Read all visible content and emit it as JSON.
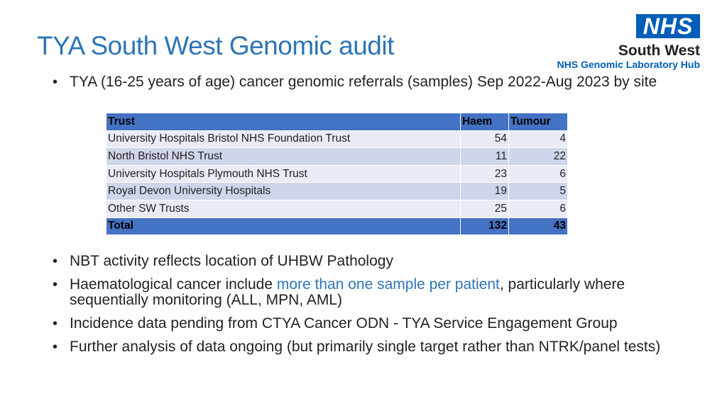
{
  "slide": {
    "title": "TYA South West Genomic audit",
    "intro_bullets": [
      "TYA (16-25 years of age) cancer genomic referrals (samples) Sep 2022-Aug 2023 by site"
    ],
    "notes": [
      {
        "text": "NBT activity reflects location of UHBW Pathology"
      },
      {
        "pre": "Haematological cancer include ",
        "highlight": "more than one sample per patient",
        "post": ", particularly where sequentially monitoring (ALL, MPN, AML)"
      },
      {
        "text": "Incidence data pending from CTYA Cancer ODN - TYA Service Engagement Group"
      },
      {
        "text": "Further analysis of data ongoing (but primarily single target rather than NTRK/panel tests)"
      }
    ]
  },
  "logo": {
    "badge": "NHS",
    "region": "South West",
    "hub": "NHS Genomic Laboratory Hub",
    "brand_color": "#005eb8"
  },
  "table": {
    "headers": [
      "Trust",
      "Haem",
      "Tumour"
    ],
    "rows": [
      [
        "University Hospitals Bristol NHS Foundation Trust",
        "54",
        "4"
      ],
      [
        "North Bristol NHS Trust",
        "11",
        "22"
      ],
      [
        "University Hospitals Plymouth NHS Trust",
        "23",
        "6"
      ],
      [
        "Royal Devon University Hospitals",
        "19",
        "5"
      ],
      [
        "Other SW Trusts",
        "25",
        "6"
      ]
    ],
    "total": [
      "Total",
      "132",
      "43"
    ]
  },
  "colors": {
    "title": "#2e74b5",
    "table_header": "#4472c4",
    "row_light": "#e9ebf5",
    "row_dark": "#cfd5ea"
  }
}
